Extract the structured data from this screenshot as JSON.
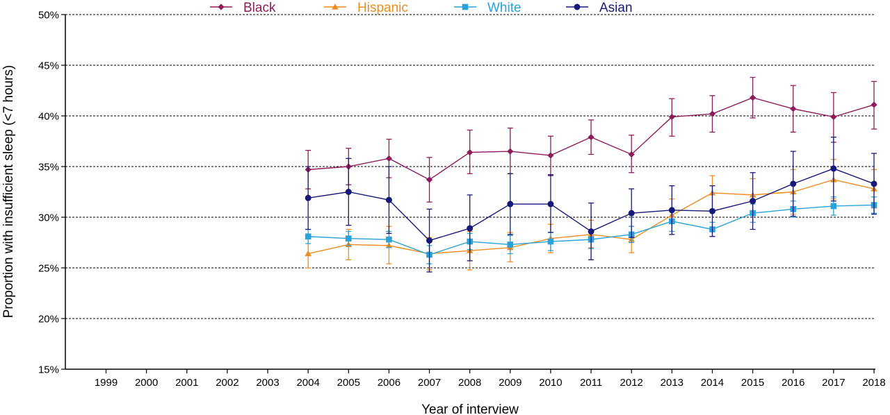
{
  "chart_data": {
    "type": "line",
    "xlabel": "Year of interview",
    "ylabel": "Proportion with insufficient sleep (<7 hours)",
    "x": [
      1999,
      2000,
      2001,
      2002,
      2003,
      2004,
      2005,
      2006,
      2007,
      2008,
      2009,
      2010,
      2011,
      2012,
      2013,
      2014,
      2015,
      2016,
      2017,
      2018
    ],
    "x_tick_labels": [
      "1999",
      "2000",
      "2001",
      "2002",
      "2003",
      "2004",
      "2005",
      "2006",
      "2007",
      "2008",
      "2009",
      "2010",
      "2011",
      "2012",
      "2013",
      "2014",
      "2015",
      "2016",
      "2017",
      "2018"
    ],
    "ylim": [
      15,
      50
    ],
    "y_ticks": [
      15,
      20,
      25,
      30,
      35,
      40,
      45,
      50
    ],
    "y_tick_labels": [
      "15%",
      "20%",
      "25%",
      "30%",
      "35%",
      "40%",
      "45%",
      "50%"
    ],
    "grid": "horizontal dashed",
    "legend_position": "top",
    "series": [
      {
        "name": "Black",
        "color": "#8e1b5a",
        "marker": "diamond",
        "x": [
          2004,
          2005,
          2006,
          2007,
          2008,
          2009,
          2010,
          2011,
          2012,
          2013,
          2014,
          2015,
          2016,
          2017,
          2018
        ],
        "values": [
          34.7,
          35.0,
          35.8,
          33.7,
          36.4,
          36.5,
          36.1,
          37.9,
          36.2,
          39.9,
          40.2,
          41.8,
          40.7,
          39.9,
          41.1
        ],
        "err_low": [
          32.8,
          33.2,
          33.9,
          31.5,
          34.3,
          34.3,
          34.1,
          36.2,
          34.4,
          38.0,
          38.4,
          39.8,
          38.4,
          37.4,
          38.7
        ],
        "err_high": [
          36.6,
          36.8,
          37.7,
          35.9,
          38.6,
          38.8,
          38.0,
          39.6,
          38.1,
          41.7,
          42.0,
          43.8,
          43.0,
          42.3,
          43.4
        ]
      },
      {
        "name": "Hispanic",
        "color": "#f08c1e",
        "marker": "triangle",
        "x": [
          2004,
          2005,
          2006,
          2007,
          2008,
          2009,
          2010,
          2011,
          2012,
          2013,
          2014,
          2015,
          2016,
          2017,
          2018
        ],
        "values": [
          26.4,
          27.3,
          27.2,
          26.4,
          26.7,
          27.0,
          27.9,
          28.3,
          27.8,
          30.2,
          32.4,
          32.2,
          32.5,
          33.7,
          32.8
        ],
        "err_low": [
          25.0,
          25.8,
          25.4,
          24.8,
          24.8,
          25.6,
          26.5,
          27.0,
          26.5,
          28.6,
          30.7,
          30.6,
          30.3,
          31.8,
          30.9
        ],
        "err_high": [
          27.9,
          28.8,
          29.1,
          28.0,
          28.6,
          28.5,
          29.3,
          29.7,
          29.1,
          31.8,
          34.1,
          33.8,
          34.7,
          35.7,
          34.7
        ]
      },
      {
        "name": "White",
        "color": "#29a1d9",
        "marker": "square",
        "x": [
          2004,
          2005,
          2006,
          2007,
          2008,
          2009,
          2010,
          2011,
          2012,
          2013,
          2014,
          2015,
          2016,
          2017,
          2018
        ],
        "values": [
          28.1,
          27.9,
          27.8,
          26.3,
          27.6,
          27.3,
          27.6,
          27.8,
          28.3,
          29.6,
          28.8,
          30.4,
          30.8,
          31.1,
          31.2
        ],
        "err_low": [
          27.4,
          27.2,
          27.0,
          25.4,
          26.8,
          26.4,
          26.7,
          26.9,
          27.5,
          28.6,
          28.1,
          29.5,
          30.0,
          30.2,
          30.4
        ],
        "err_high": [
          28.8,
          28.6,
          28.6,
          27.2,
          28.4,
          28.2,
          28.5,
          28.7,
          29.1,
          30.6,
          29.5,
          31.3,
          31.6,
          32.0,
          32.0
        ]
      },
      {
        "name": "Asian",
        "color": "#16187a",
        "marker": "circle",
        "x": [
          2004,
          2005,
          2006,
          2007,
          2008,
          2009,
          2010,
          2011,
          2012,
          2013,
          2014,
          2015,
          2016,
          2017,
          2018
        ],
        "values": [
          31.9,
          32.5,
          31.7,
          27.7,
          28.9,
          31.3,
          31.3,
          28.6,
          30.4,
          30.7,
          30.6,
          31.6,
          33.3,
          34.8,
          33.3
        ],
        "err_low": [
          28.8,
          29.2,
          28.4,
          24.6,
          25.7,
          28.3,
          28.5,
          25.8,
          28.0,
          28.3,
          28.1,
          28.8,
          30.1,
          31.6,
          30.3
        ],
        "err_high": [
          35.0,
          35.8,
          35.0,
          30.8,
          32.2,
          34.3,
          34.2,
          31.4,
          32.8,
          33.1,
          33.1,
          34.4,
          36.5,
          37.9,
          36.3
        ]
      }
    ]
  }
}
